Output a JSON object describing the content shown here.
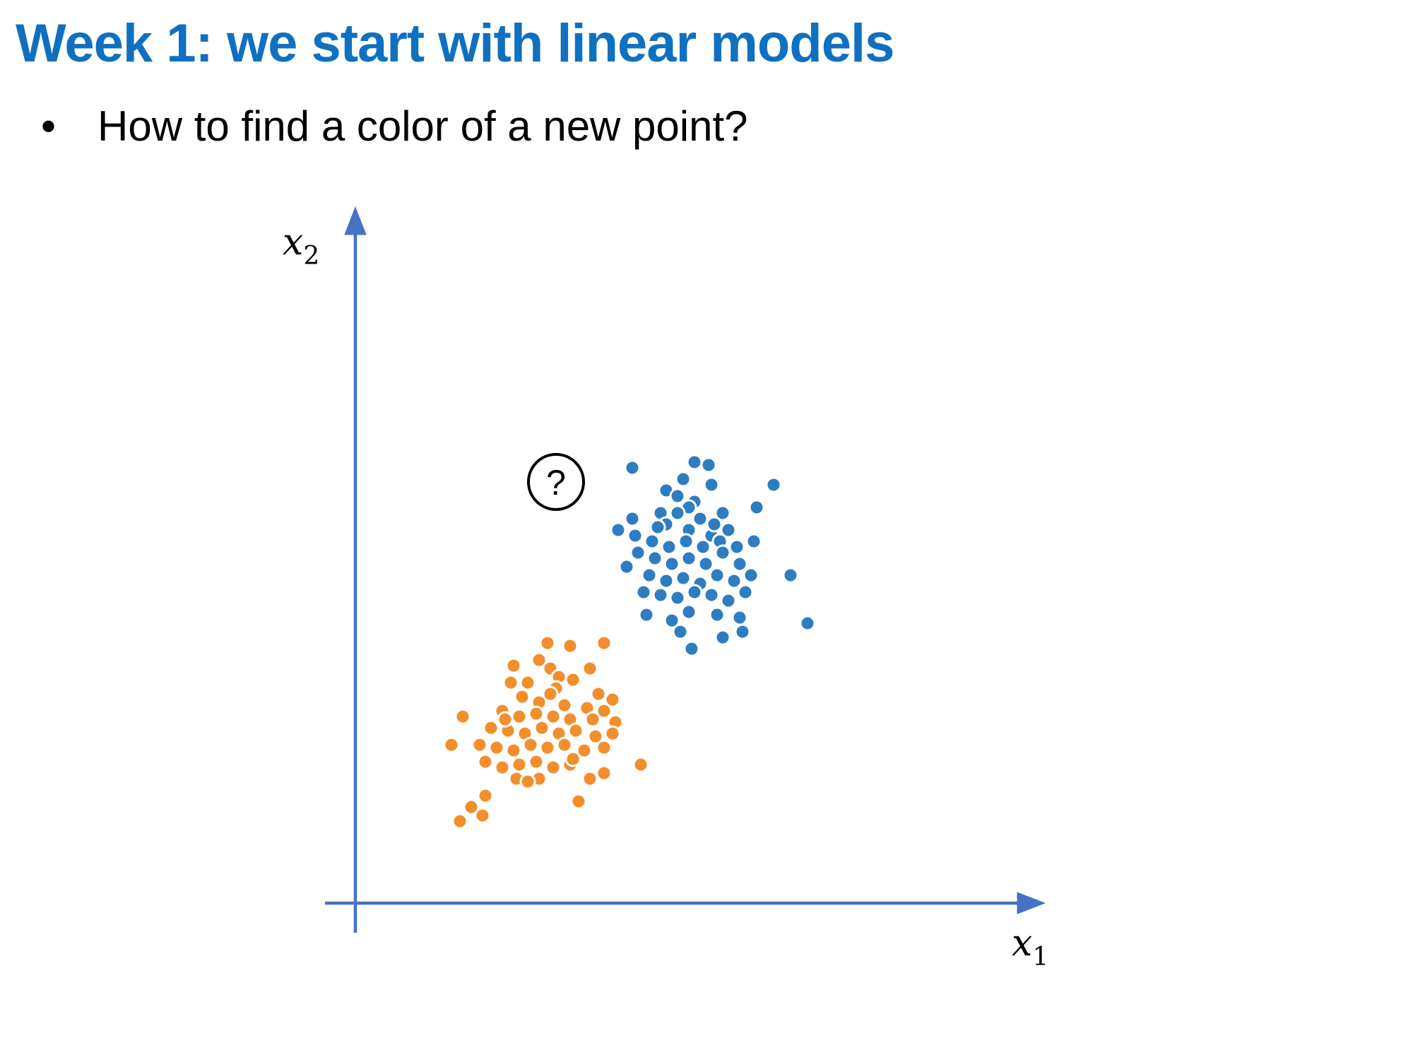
{
  "slide": {
    "title": "Week 1: we start with linear models",
    "bullet": "How to find a color of a new point?"
  },
  "chart_data": {
    "type": "scatter",
    "x_axis_label": "x",
    "x_axis_subscript": "1",
    "y_axis_label": "x",
    "y_axis_subscript": "2",
    "query_point": {
      "label": "?",
      "x": 3.55,
      "y": 7.45
    },
    "xlim": [
      0,
      10
    ],
    "ylim": [
      0,
      10
    ],
    "grid": false,
    "axis_color": "#4472c4",
    "series": [
      {
        "color": "#2e7dc1",
        "points": [
          [
            4.9,
            7.7
          ],
          [
            7.4,
            7.4
          ],
          [
            5.5,
            7.3
          ],
          [
            5.8,
            7.5
          ],
          [
            6.3,
            7.4
          ],
          [
            6.0,
            7.1
          ],
          [
            5.9,
            7.0
          ],
          [
            6.5,
            6.9
          ],
          [
            4.9,
            6.8
          ],
          [
            5.4,
            6.9
          ],
          [
            5.5,
            6.7
          ],
          [
            5.7,
            6.9
          ],
          [
            5.9,
            6.6
          ],
          [
            6.1,
            6.8
          ],
          [
            6.3,
            6.5
          ],
          [
            6.6,
            6.6
          ],
          [
            7.1,
            7.0
          ],
          [
            4.65,
            6.6
          ],
          [
            4.95,
            6.5
          ],
          [
            5.25,
            6.4
          ],
          [
            5.55,
            6.3
          ],
          [
            5.85,
            6.4
          ],
          [
            6.15,
            6.3
          ],
          [
            6.45,
            6.4
          ],
          [
            6.75,
            6.3
          ],
          [
            7.05,
            6.4
          ],
          [
            5.0,
            6.2
          ],
          [
            5.3,
            6.1
          ],
          [
            5.6,
            6.0
          ],
          [
            5.9,
            6.1
          ],
          [
            6.2,
            6.0
          ],
          [
            6.5,
            6.2
          ],
          [
            6.8,
            6.0
          ],
          [
            4.8,
            5.95
          ],
          [
            5.2,
            5.8
          ],
          [
            5.5,
            5.7
          ],
          [
            5.8,
            5.75
          ],
          [
            6.1,
            5.65
          ],
          [
            6.4,
            5.8
          ],
          [
            6.7,
            5.7
          ],
          [
            7.0,
            5.8
          ],
          [
            5.1,
            5.5
          ],
          [
            5.4,
            5.45
          ],
          [
            5.7,
            5.4
          ],
          [
            6.0,
            5.5
          ],
          [
            6.3,
            5.45
          ],
          [
            6.6,
            5.35
          ],
          [
            6.9,
            5.5
          ],
          [
            7.7,
            5.8
          ],
          [
            5.15,
            5.1
          ],
          [
            5.6,
            5.0
          ],
          [
            5.9,
            5.15
          ],
          [
            6.4,
            5.1
          ],
          [
            6.8,
            5.05
          ],
          [
            5.75,
            4.8
          ],
          [
            6.5,
            4.7
          ],
          [
            6.85,
            4.8
          ],
          [
            5.95,
            4.5
          ],
          [
            8.0,
            4.95
          ],
          [
            6.0,
            7.8
          ],
          [
            5.7,
            7.2
          ],
          [
            6.25,
            7.75
          ],
          [
            5.35,
            6.65
          ],
          [
            6.35,
            6.7
          ]
        ]
      },
      {
        "color": "#f28e2b",
        "points": [
          [
            3.4,
            4.6
          ],
          [
            3.8,
            4.55
          ],
          [
            4.4,
            4.6
          ],
          [
            2.8,
            4.2
          ],
          [
            3.45,
            4.15
          ],
          [
            4.15,
            4.15
          ],
          [
            3.6,
            4.0
          ],
          [
            3.85,
            3.95
          ],
          [
            3.05,
            3.9
          ],
          [
            3.55,
            3.8
          ],
          [
            4.3,
            3.7
          ],
          [
            4.55,
            3.6
          ],
          [
            2.95,
            3.65
          ],
          [
            3.25,
            3.55
          ],
          [
            3.7,
            3.5
          ],
          [
            4.1,
            3.45
          ],
          [
            4.4,
            3.4
          ],
          [
            1.9,
            3.3
          ],
          [
            2.6,
            3.4
          ],
          [
            2.9,
            3.3
          ],
          [
            3.2,
            3.35
          ],
          [
            3.5,
            3.3
          ],
          [
            3.8,
            3.25
          ],
          [
            4.2,
            3.25
          ],
          [
            4.6,
            3.2
          ],
          [
            2.4,
            3.1
          ],
          [
            2.7,
            3.05
          ],
          [
            3.0,
            3.0
          ],
          [
            3.3,
            3.1
          ],
          [
            3.6,
            3.0
          ],
          [
            3.9,
            3.05
          ],
          [
            4.25,
            2.95
          ],
          [
            4.55,
            3.0
          ],
          [
            1.7,
            2.8
          ],
          [
            2.2,
            2.8
          ],
          [
            2.5,
            2.75
          ],
          [
            2.8,
            2.7
          ],
          [
            3.1,
            2.8
          ],
          [
            3.4,
            2.75
          ],
          [
            3.7,
            2.8
          ],
          [
            4.05,
            2.7
          ],
          [
            4.4,
            2.75
          ],
          [
            2.3,
            2.5
          ],
          [
            2.6,
            2.4
          ],
          [
            2.9,
            2.45
          ],
          [
            3.2,
            2.5
          ],
          [
            3.5,
            2.4
          ],
          [
            3.8,
            2.45
          ],
          [
            4.4,
            2.3
          ],
          [
            5.05,
            2.45
          ],
          [
            2.85,
            2.2
          ],
          [
            3.25,
            2.2
          ],
          [
            3.05,
            2.15
          ],
          [
            4.15,
            2.2
          ],
          [
            2.3,
            1.9
          ],
          [
            2.05,
            1.7
          ],
          [
            2.25,
            1.55
          ],
          [
            3.95,
            1.8
          ],
          [
            1.85,
            1.45
          ],
          [
            2.75,
            3.9
          ],
          [
            3.25,
            4.3
          ],
          [
            3.45,
            3.7
          ],
          [
            2.65,
            3.25
          ],
          [
            3.85,
            2.55
          ]
        ]
      }
    ]
  }
}
